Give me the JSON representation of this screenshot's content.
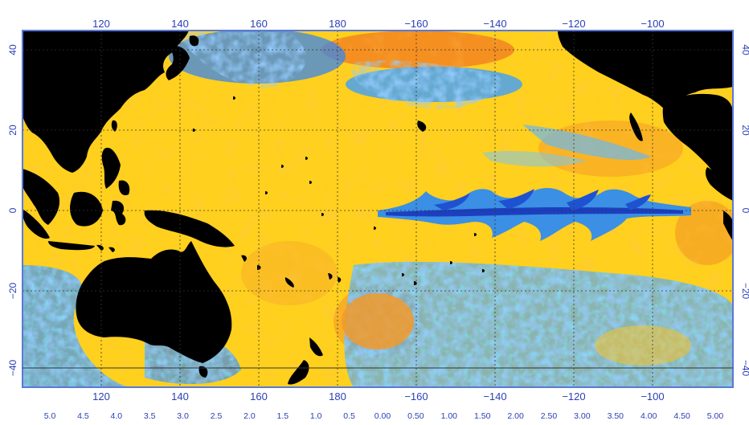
{
  "map": {
    "top_lon_labels": [
      "120",
      "140",
      "160",
      "180",
      "−160",
      "−140",
      "−120",
      "−100"
    ],
    "bottom_lon_labels": [
      "120",
      "140",
      "160",
      "180",
      "−160",
      "−140",
      "−120",
      "−100"
    ],
    "left_lat_labels": [
      "40",
      "20",
      "0",
      "−20",
      "−40"
    ],
    "right_lat_labels": [
      "40",
      "20",
      "0",
      "−20",
      "−40"
    ],
    "colorbar_labels": [
      "5.0",
      "4.5",
      "4.0",
      "3.5",
      "3.0",
      "2.5",
      "2.0",
      "1.5",
      "1.0",
      "0.5",
      "0.00",
      "0.50",
      "1.00",
      "1.50",
      "2.00",
      "2.50",
      "3.00",
      "3.50",
      "4.00",
      "4.50",
      "5.00"
    ],
    "colors": {
      "land": "#000000",
      "ocean_base": "#ffcc1a",
      "frame": "#5a79d8",
      "label": "#2a3fb5",
      "grid": "#333333"
    }
  }
}
